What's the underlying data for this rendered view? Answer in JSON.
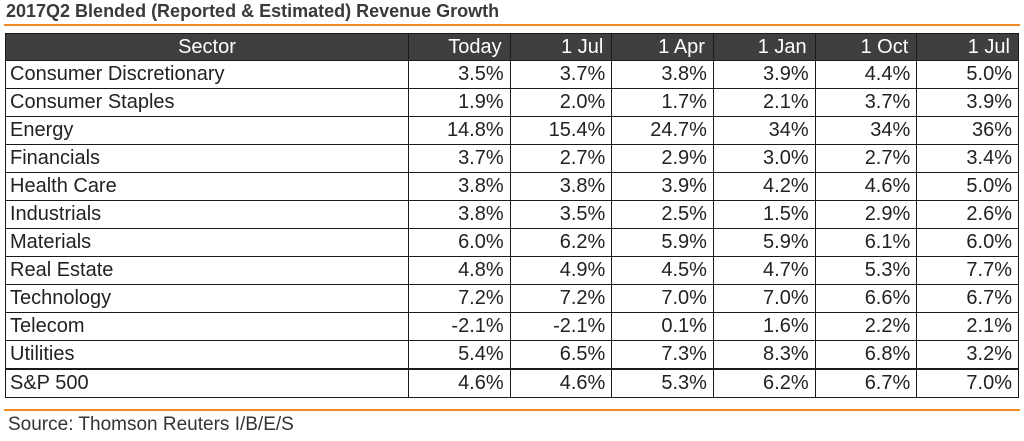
{
  "chart_data": {
    "type": "table",
    "title": "2017Q2 Blended (Reported & Estimated) Revenue Growth",
    "columns": [
      "Sector",
      "Today",
      "1 Jul",
      "1 Apr",
      "1 Jan",
      "1 Oct",
      "1 Jul"
    ],
    "rows": [
      {
        "sector": "Consumer Discretionary",
        "values": [
          "3.5%",
          "3.7%",
          "3.8%",
          "3.9%",
          "4.4%",
          "5.0%"
        ]
      },
      {
        "sector": "Consumer Staples",
        "values": [
          "1.9%",
          "2.0%",
          "1.7%",
          "2.1%",
          "3.7%",
          "3.9%"
        ]
      },
      {
        "sector": "Energy",
        "values": [
          "14.8%",
          "15.4%",
          "24.7%",
          "34%",
          "34%",
          "36%"
        ]
      },
      {
        "sector": "Financials",
        "values": [
          "3.7%",
          "2.7%",
          "2.9%",
          "3.0%",
          "2.7%",
          "3.4%"
        ]
      },
      {
        "sector": "Health Care",
        "values": [
          "3.8%",
          "3.8%",
          "3.9%",
          "4.2%",
          "4.6%",
          "5.0%"
        ]
      },
      {
        "sector": "Industrials",
        "values": [
          "3.8%",
          "3.5%",
          "2.5%",
          "1.5%",
          "2.9%",
          "2.6%"
        ]
      },
      {
        "sector": "Materials",
        "values": [
          "6.0%",
          "6.2%",
          "5.9%",
          "5.9%",
          "6.1%",
          "6.0%"
        ]
      },
      {
        "sector": "Real Estate",
        "values": [
          "4.8%",
          "4.9%",
          "4.5%",
          "4.7%",
          "5.3%",
          "7.7%"
        ]
      },
      {
        "sector": "Technology",
        "values": [
          "7.2%",
          "7.2%",
          "7.0%",
          "7.0%",
          "6.6%",
          "6.7%"
        ]
      },
      {
        "sector": "Telecom",
        "values": [
          "-2.1%",
          "-2.1%",
          "0.1%",
          "1.6%",
          "2.2%",
          "2.1%"
        ]
      },
      {
        "sector": "Utilities",
        "values": [
          "5.4%",
          "6.5%",
          "7.3%",
          "8.3%",
          "6.8%",
          "3.2%"
        ]
      }
    ],
    "total": {
      "sector": "S&P 500",
      "values": [
        "4.6%",
        "4.6%",
        "5.3%",
        "6.2%",
        "6.7%",
        "7.0%"
      ]
    },
    "source": "Source: Thomson Reuters I/B/E/S"
  },
  "colors": {
    "accent": "#f08a24",
    "header_bg": "#3f3f3f",
    "header_text": "#ffffff",
    "border": "#1a1a1a"
  }
}
